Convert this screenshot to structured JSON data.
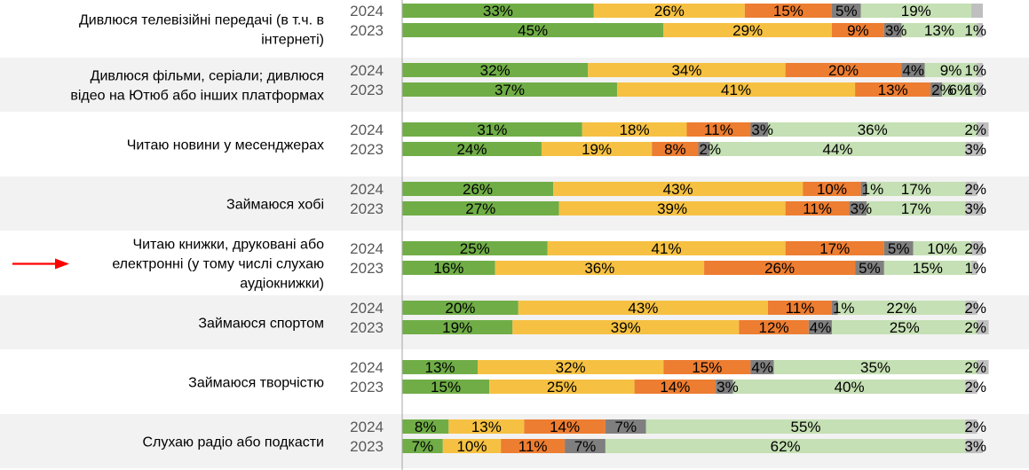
{
  "chart_data": {
    "type": "bar",
    "stacked": true,
    "orientation": "horizontal",
    "unit": "%",
    "xlim": [
      0,
      100
    ],
    "grid": false,
    "legend": "none",
    "segment_colors": [
      "#70ad47",
      "#f6c142",
      "#ed7d31",
      "#7f7f7f",
      "#c5e0b4",
      "#bfbfbf"
    ],
    "categories": [
      {
        "label": "Дивлюся телевізійні передачі (в т.ч. в інтернеті)",
        "label_lines": [
          "Дивлюся телевізійні передачі (в т.ч. в",
          "інтернеті)"
        ],
        "rows": [
          {
            "year": "2024",
            "values": [
              33,
              26,
              15,
              5,
              19,
              2
            ],
            "labels": [
              "33%",
              "26%",
              "15%",
              "5%",
              "19%",
              ""
            ]
          },
          {
            "year": "2023",
            "values": [
              45,
              29,
              9,
              3,
              13,
              1
            ],
            "labels": [
              "45%",
              "29%",
              "9%",
              "3%",
              "13%",
              "1%"
            ]
          }
        ]
      },
      {
        "label": "Дивлюся фільми, серіали; дивлюся відео на Ютюб або інших платформах",
        "label_lines": [
          "Дивлюся фільми, серіали; дивлюся",
          "відео на Ютюб або інших платформах"
        ],
        "rows": [
          {
            "year": "2024",
            "values": [
              32,
              34,
              20,
              4,
              9,
              1
            ],
            "labels": [
              "32%",
              "34%",
              "20%",
              "4%",
              "9%",
              "1%"
            ]
          },
          {
            "year": "2023",
            "values": [
              37,
              41,
              13,
              2,
              6,
              1
            ],
            "labels": [
              "37%",
              "41%",
              "13%",
              "2%",
              "6%",
              "1%"
            ]
          }
        ]
      },
      {
        "label": "Читаю новини у месенджерах",
        "label_lines": [
          "Читаю новини у месенджерах"
        ],
        "rows": [
          {
            "year": "2024",
            "values": [
              31,
              18,
              11,
              3,
              36,
              2
            ],
            "labels": [
              "31%",
              "18%",
              "11%",
              "3%",
              "36%",
              "2%"
            ]
          },
          {
            "year": "2023",
            "values": [
              24,
              19,
              8,
              2,
              44,
              3
            ],
            "labels": [
              "24%",
              "19%",
              "8%",
              "2%",
              "44%",
              "3%"
            ]
          }
        ]
      },
      {
        "label": "Займаюся хобі",
        "label_lines": [
          "Займаюся хобі"
        ],
        "rows": [
          {
            "year": "2024",
            "values": [
              26,
              43,
              10,
              1,
              17,
              2
            ],
            "labels": [
              "26%",
              "43%",
              "10%",
              "1%",
              "17%",
              "2%"
            ]
          },
          {
            "year": "2023",
            "values": [
              27,
              39,
              11,
              3,
              17,
              3
            ],
            "labels": [
              "27%",
              "39%",
              "11%",
              "3%",
              "17%",
              "3%"
            ]
          }
        ]
      },
      {
        "label": "Читаю книжки, друковані або електронні (у тому числі слухаю аудіокнижки)",
        "label_lines": [
          "Читаю книжки, друковані або",
          "електронні (у тому числі слухаю",
          "аудіокнижки)"
        ],
        "highlighted": true,
        "rows": [
          {
            "year": "2024",
            "values": [
              25,
              41,
              17,
              5,
              10,
              2
            ],
            "labels": [
              "25%",
              "41%",
              "17%",
              "5%",
              "10%",
              "2%"
            ]
          },
          {
            "year": "2023",
            "values": [
              16,
              36,
              26,
              5,
              15,
              1
            ],
            "labels": [
              "16%",
              "36%",
              "26%",
              "5%",
              "15%",
              "1%"
            ]
          }
        ]
      },
      {
        "label": "Займаюся спортом",
        "label_lines": [
          "Займаюся спортом"
        ],
        "rows": [
          {
            "year": "2024",
            "values": [
              20,
              43,
              11,
              1,
              22,
              2
            ],
            "labels": [
              "20%",
              "43%",
              "11%",
              "1%",
              "22%",
              "2%"
            ]
          },
          {
            "year": "2023",
            "values": [
              19,
              39,
              12,
              4,
              25,
              2
            ],
            "labels": [
              "19%",
              "39%",
              "12%",
              "4%",
              "25%",
              "2%"
            ]
          }
        ]
      },
      {
        "label": "Займаюся творчістю",
        "label_lines": [
          "Займаюся творчістю"
        ],
        "rows": [
          {
            "year": "2024",
            "values": [
              13,
              32,
              15,
              4,
              35,
              2
            ],
            "labels": [
              "13%",
              "32%",
              "15%",
              "4%",
              "35%",
              "2%"
            ]
          },
          {
            "year": "2023",
            "values": [
              15,
              25,
              14,
              3,
              40,
              2
            ],
            "labels": [
              "15%",
              "25%",
              "14%",
              "3%",
              "40%",
              "2%"
            ]
          }
        ]
      },
      {
        "label": "Слухаю радіо або подкасти",
        "label_lines": [
          "Слухаю радіо або подкасти"
        ],
        "rows": [
          {
            "year": "2024",
            "values": [
              8,
              13,
              14,
              7,
              55,
              2
            ],
            "labels": [
              "8%",
              "13%",
              "14%",
              "7%",
              "55%",
              "2%"
            ]
          },
          {
            "year": "2023",
            "values": [
              7,
              10,
              11,
              7,
              62,
              3
            ],
            "labels": [
              "7%",
              "10%",
              "11%",
              "7%",
              "62%",
              "3%"
            ]
          }
        ]
      }
    ]
  }
}
